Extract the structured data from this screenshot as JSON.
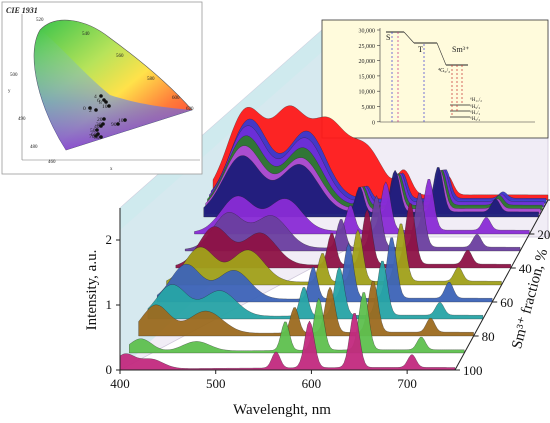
{
  "inset_cie": {
    "title": "CIE 1931",
    "edge_labels": [
      "520",
      "540",
      "560",
      "580",
      "600",
      "620",
      "500",
      "490",
      "480",
      "460"
    ],
    "axis_x": "x",
    "axis_y": "y",
    "point_labels": [
      "0",
      "2",
      "4",
      "6",
      "8",
      "10",
      "20",
      "30",
      "40",
      "50",
      "60",
      "70",
      "80",
      "90",
      "100"
    ]
  },
  "inset_energy": {
    "yticks": [
      "30,000",
      "25,000",
      "20,000",
      "15,000",
      "10,000",
      "5,000",
      "0"
    ],
    "level_labels": [
      "S",
      "T",
      "Sm³⁺",
      "⁴G₅/₂",
      "⁶H₁₁/₂",
      "⁶H₉/₂",
      "⁶H₇/₂",
      "⁶H₅/₂"
    ]
  },
  "chart_data": {
    "type": "area",
    "xlabel": "Wavelenght, nm",
    "ylabel": "Intensity, a.u.",
    "zlabel": "Sm³⁺ fraction, %",
    "x_ticks": [
      "400",
      "500",
      "600",
      "700"
    ],
    "y_ticks": [
      "0",
      "1",
      "2"
    ],
    "z_ticks": [
      "0",
      "20",
      "40",
      "60",
      "80",
      "100"
    ],
    "xlim": [
      400,
      750
    ],
    "ylim": [
      0,
      2.5
    ],
    "series": [
      {
        "fraction": 100,
        "color": "#c22a7f",
        "peaks": [
          [
            405,
            0.22,
            14
          ],
          [
            432,
            0.15,
            18
          ],
          [
            563,
            0.25,
            6
          ],
          [
            598,
            0.72,
            7
          ],
          [
            645,
            0.85,
            7
          ],
          [
            705,
            0.2,
            6
          ]
        ],
        "base": 0.04
      },
      {
        "fraction": 90,
        "color": "#5ec04f",
        "peaks": [
          [
            412,
            0.2,
            16
          ],
          [
            470,
            0.15,
            20
          ],
          [
            563,
            0.45,
            6
          ],
          [
            598,
            0.8,
            7
          ],
          [
            645,
            0.9,
            7
          ],
          [
            705,
            0.2,
            6
          ]
        ],
        "base": 0.05
      },
      {
        "fraction": 80,
        "color": "#9c6b1f",
        "peaks": [
          [
            418,
            0.45,
            20
          ],
          [
            470,
            0.35,
            25
          ],
          [
            563,
            0.4,
            6
          ],
          [
            600,
            0.7,
            7
          ],
          [
            645,
            0.8,
            7
          ],
          [
            705,
            0.22,
            6
          ]
        ],
        "base": 0.06
      },
      {
        "fraction": 70,
        "color": "#27a4a6",
        "peaks": [
          [
            425,
            0.5,
            22
          ],
          [
            475,
            0.4,
            24
          ],
          [
            563,
            0.45,
            6
          ],
          [
            600,
            0.75,
            7
          ],
          [
            645,
            0.85,
            7
          ],
          [
            705,
            0.2,
            6
          ]
        ],
        "base": 0.06
      },
      {
        "fraction": 60,
        "color": "#3d64b8",
        "peaks": [
          [
            430,
            0.55,
            22
          ],
          [
            480,
            0.45,
            24
          ],
          [
            563,
            0.5,
            6
          ],
          [
            600,
            0.85,
            7
          ],
          [
            645,
            0.95,
            7
          ],
          [
            705,
            0.25,
            6
          ]
        ],
        "base": 0.06
      },
      {
        "fraction": 50,
        "color": "#a1a11a",
        "peaks": [
          [
            435,
            0.55,
            22
          ],
          [
            485,
            0.5,
            24
          ],
          [
            563,
            0.45,
            6
          ],
          [
            600,
            0.8,
            7
          ],
          [
            645,
            0.9,
            7
          ],
          [
            705,
            0.22,
            6
          ]
        ],
        "base": 0.06
      },
      {
        "fraction": 40,
        "color": "#8e1246",
        "peaks": [
          [
            440,
            0.6,
            22
          ],
          [
            488,
            0.5,
            24
          ],
          [
            563,
            0.5,
            6
          ],
          [
            600,
            0.85,
            7
          ],
          [
            645,
            0.95,
            7
          ],
          [
            705,
            0.22,
            6
          ]
        ],
        "base": 0.06
      },
      {
        "fraction": 30,
        "color": "#6b3fa0",
        "peaks": [
          [
            445,
            0.55,
            22
          ],
          [
            490,
            0.5,
            24
          ],
          [
            563,
            0.45,
            6
          ],
          [
            600,
            0.8,
            7
          ],
          [
            645,
            0.85,
            7
          ],
          [
            705,
            0.2,
            6
          ]
        ],
        "base": 0.06
      },
      {
        "fraction": 20,
        "color": "#8a2cd6",
        "peaks": [
          [
            445,
            0.55,
            24
          ],
          [
            495,
            0.5,
            24
          ],
          [
            563,
            0.4,
            6
          ],
          [
            600,
            0.75,
            7
          ],
          [
            645,
            0.8,
            7
          ],
          [
            705,
            0.2,
            6
          ]
        ],
        "base": 0.06
      },
      {
        "fraction": 10,
        "color": "#1c1c7a",
        "peaks": [
          [
            440,
            0.9,
            28
          ],
          [
            500,
            0.75,
            28
          ],
          [
            563,
            0.4,
            6
          ],
          [
            600,
            0.65,
            7
          ],
          [
            645,
            0.7,
            7
          ],
          [
            705,
            0.2,
            6
          ]
        ],
        "base": 0.08
      },
      {
        "fraction": 8,
        "color": "#b14bd8",
        "peaks": [
          [
            440,
            1.0,
            28
          ],
          [
            500,
            0.8,
            28
          ],
          [
            563,
            0.35,
            6
          ],
          [
            600,
            0.55,
            7
          ],
          [
            645,
            0.6,
            7
          ],
          [
            705,
            0.15,
            6
          ]
        ],
        "base": 0.08
      },
      {
        "fraction": 6,
        "color": "#2e7a2e",
        "peaks": [
          [
            440,
            1.1,
            28
          ],
          [
            500,
            0.9,
            28
          ],
          [
            563,
            0.3,
            6
          ],
          [
            600,
            0.5,
            7
          ],
          [
            645,
            0.55,
            7
          ],
          [
            705,
            0.15,
            6
          ]
        ],
        "base": 0.08
      },
      {
        "fraction": 4,
        "color": "#6e2fd8",
        "peaks": [
          [
            440,
            1.2,
            28
          ],
          [
            500,
            1.0,
            28
          ],
          [
            563,
            0.25,
            6
          ],
          [
            600,
            0.45,
            7
          ],
          [
            645,
            0.5,
            7
          ],
          [
            705,
            0.12,
            6
          ]
        ],
        "base": 0.08
      },
      {
        "fraction": 2,
        "color": "#3a3ad0",
        "peaks": [
          [
            440,
            1.25,
            28
          ],
          [
            500,
            1.05,
            28
          ],
          [
            563,
            0.2,
            6
          ],
          [
            600,
            0.4,
            7
          ],
          [
            645,
            0.45,
            7
          ],
          [
            705,
            0.1,
            6
          ]
        ],
        "base": 0.08
      },
      {
        "fraction": 0,
        "color": "#ff1a1a",
        "peaks": [
          [
            435,
            1.35,
            28
          ],
          [
            480,
            1.2,
            24
          ],
          [
            520,
            1.1,
            26
          ],
          [
            560,
            0.7,
            24
          ],
          [
            600,
            0.35,
            10
          ],
          [
            645,
            0.3,
            8
          ]
        ],
        "base": 0.08
      }
    ]
  }
}
